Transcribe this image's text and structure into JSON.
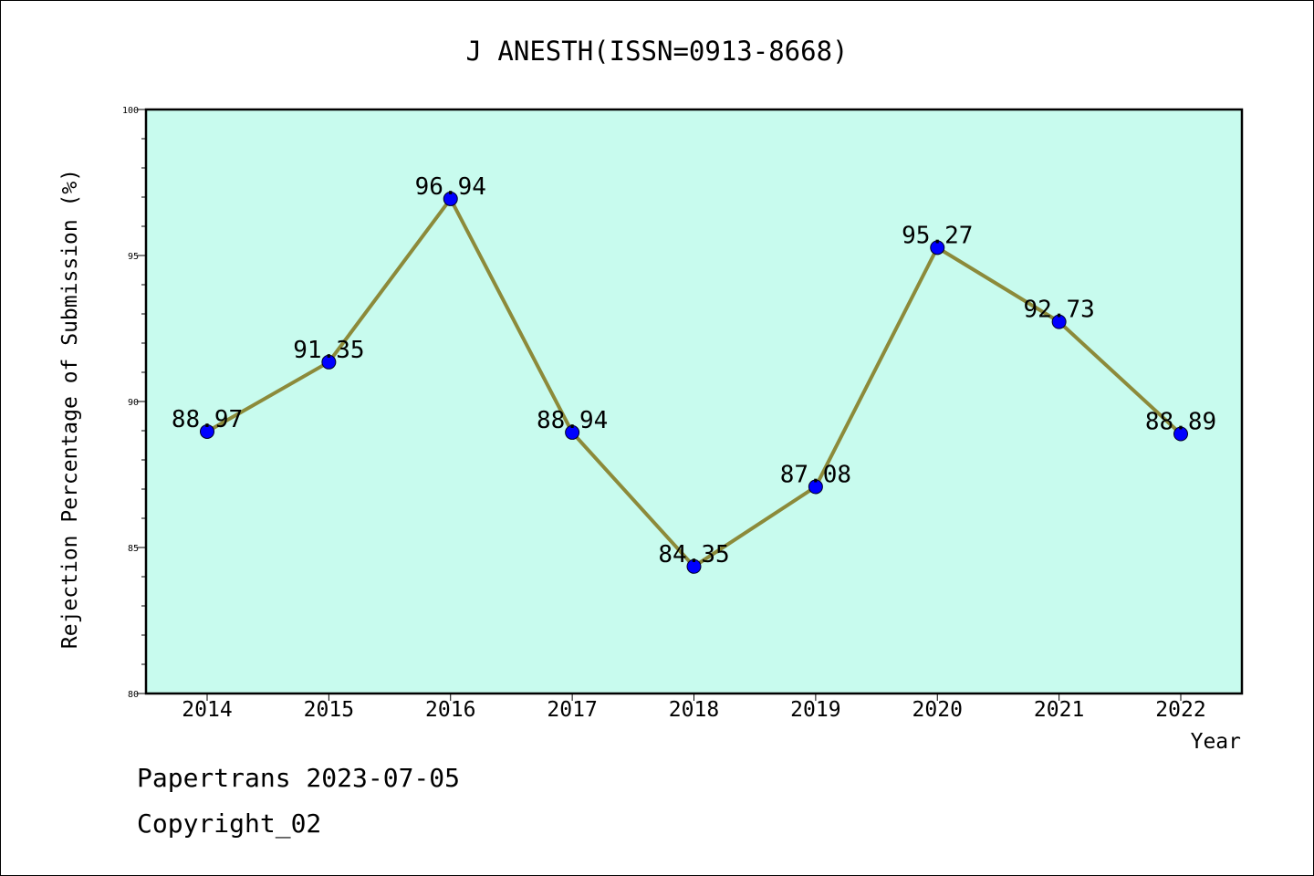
{
  "chart_data": {
    "type": "line",
    "title": "J ANESTH(ISSN=0913-8668)",
    "xlabel": "Year",
    "ylabel": "Rejection Percentage of Submission (%)",
    "categories": [
      "2014",
      "2015",
      "2016",
      "2017",
      "2018",
      "2019",
      "2020",
      "2021",
      "2022"
    ],
    "values": [
      88.97,
      91.35,
      96.94,
      88.94,
      84.35,
      87.08,
      95.27,
      92.73,
      88.89
    ],
    "data_labels": [
      "88.97",
      "91.35",
      "96.94",
      "88.94",
      "84.35",
      "87.08",
      "95.27",
      "92.73",
      "88.89"
    ],
    "ylim": [
      80,
      100
    ],
    "yticks": [
      80,
      85,
      90,
      95,
      100
    ],
    "ytick_labels": [
      "80",
      "85",
      "90",
      "95",
      "100"
    ],
    "grid": false,
    "legend": "none",
    "colors": {
      "plot_background": "#c8fbee",
      "line": "#8c8a3a",
      "marker": "#0000ff"
    }
  },
  "footer": {
    "line1": "Papertrans 2023-07-05",
    "line2": "Copyright_02"
  }
}
